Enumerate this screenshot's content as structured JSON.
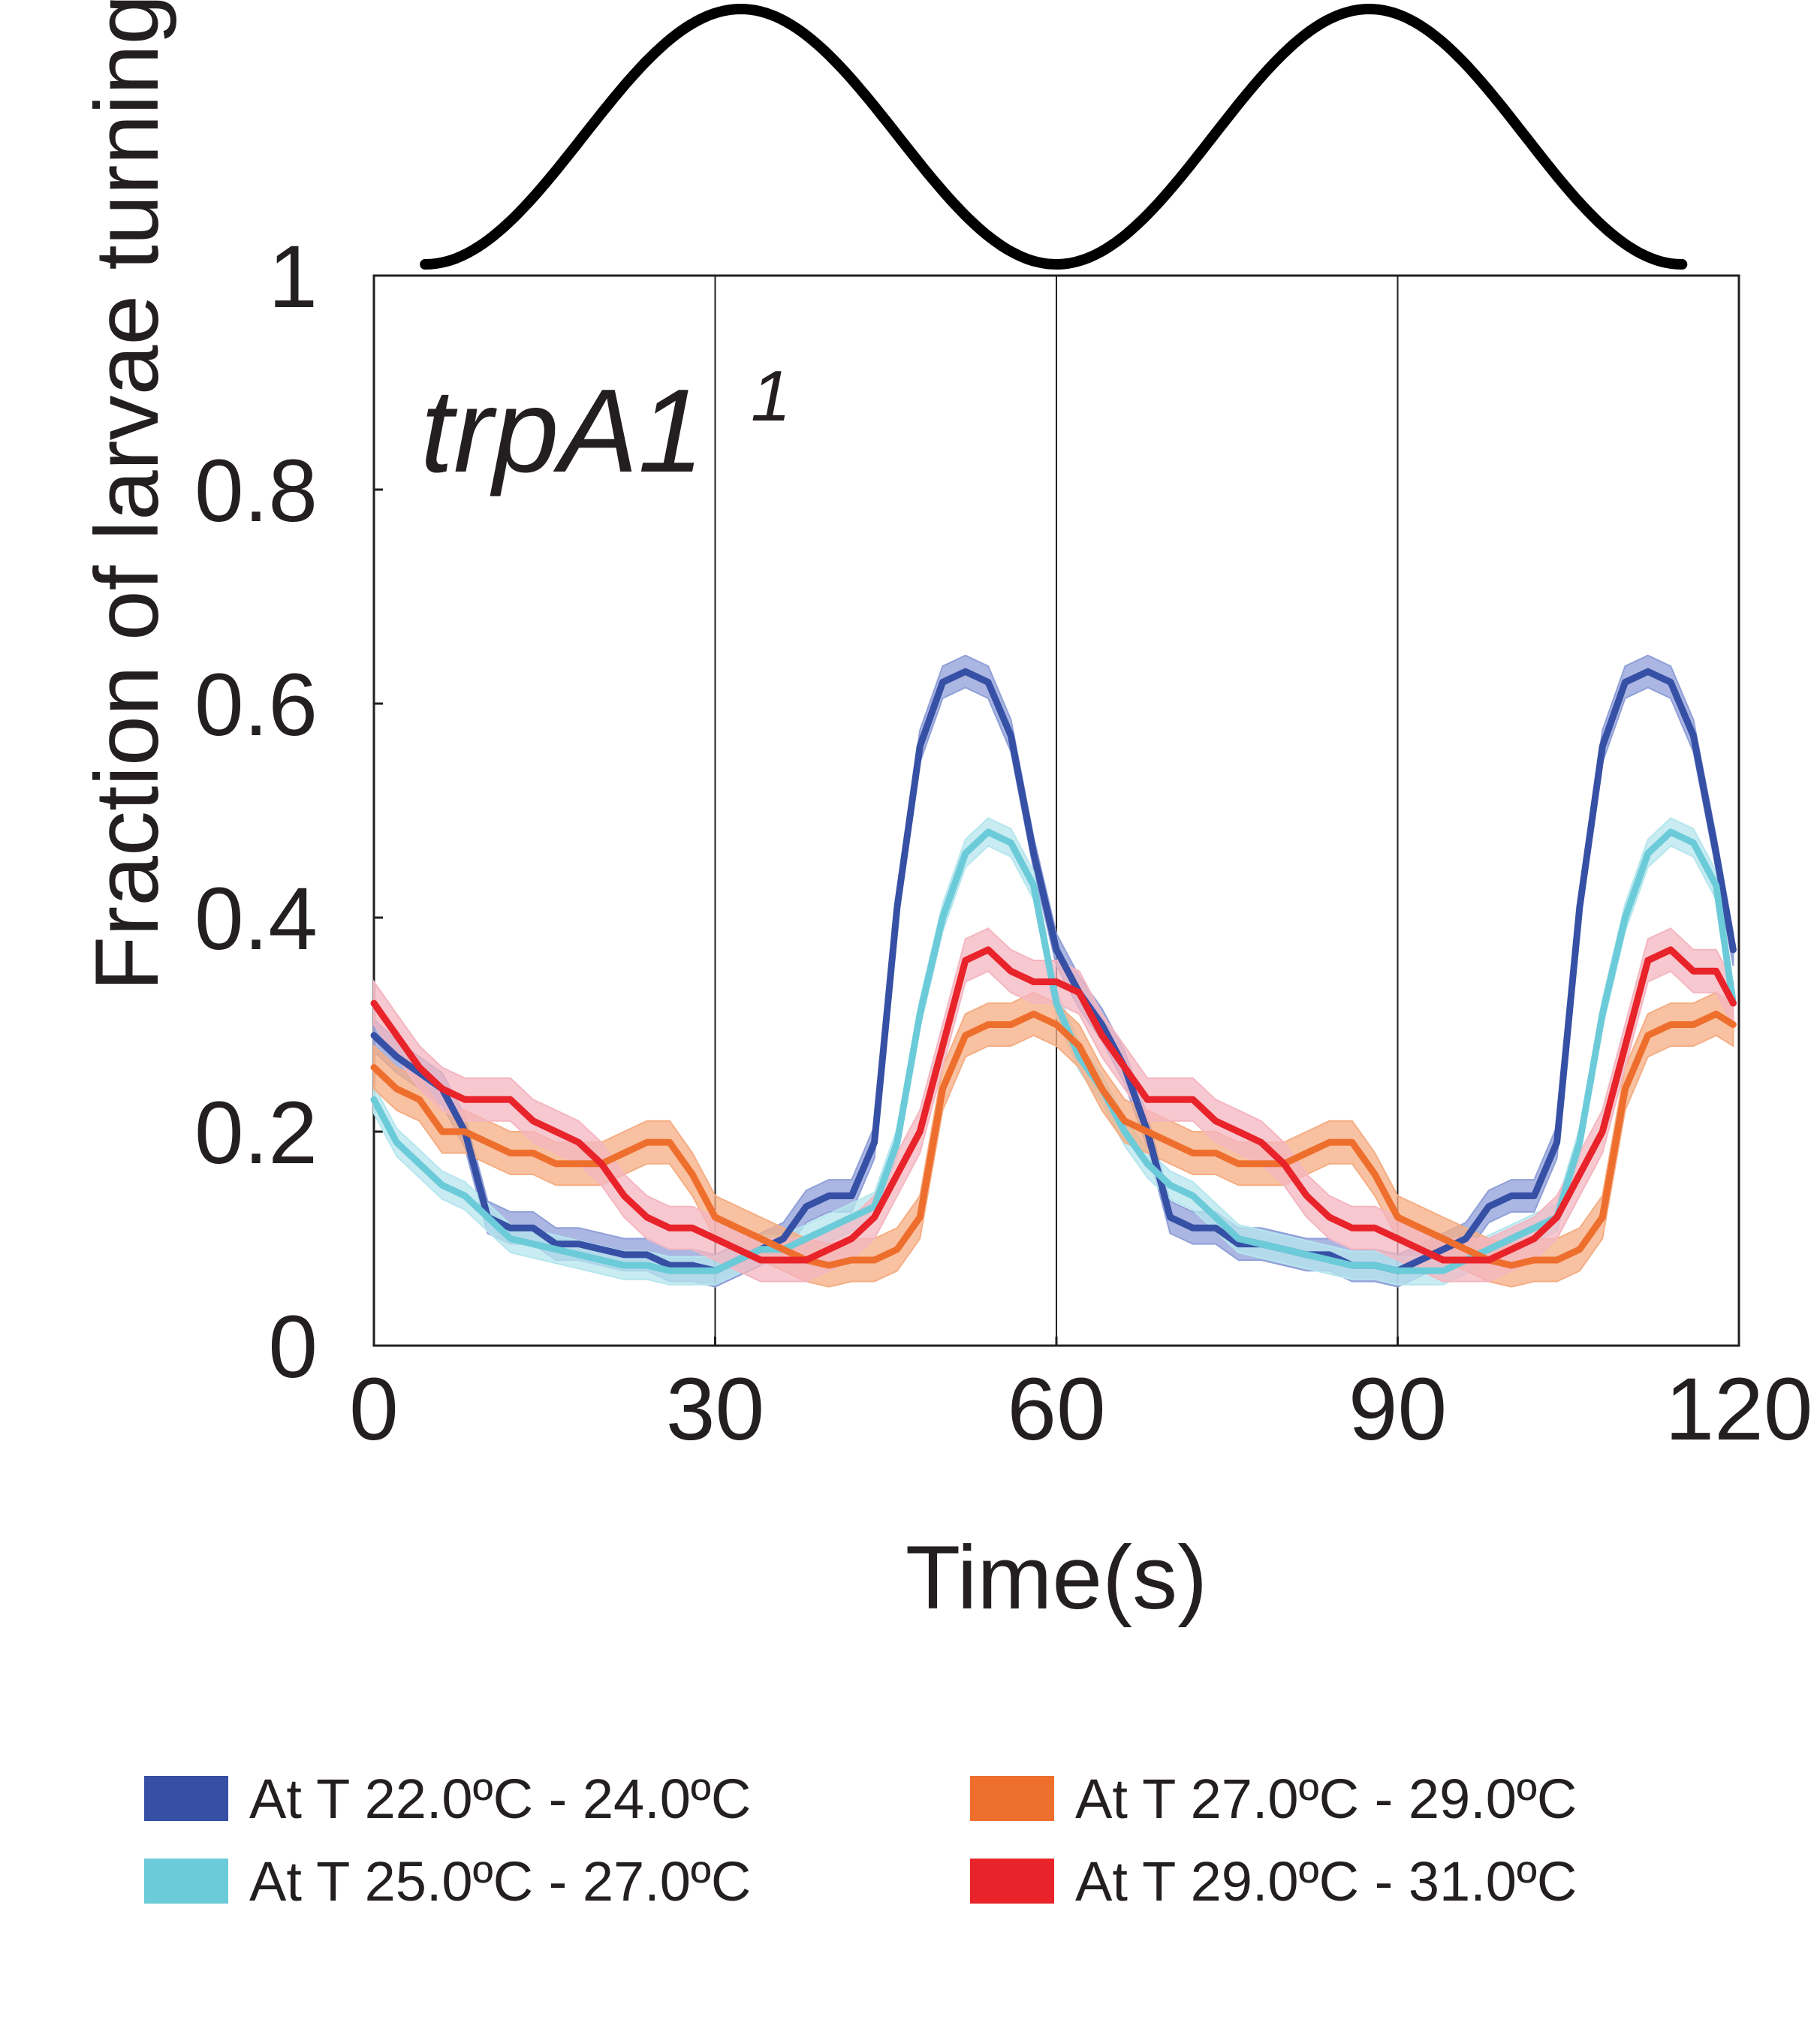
{
  "chart_data": {
    "type": "line",
    "panel_label": "trpA1",
    "panel_label_superscript": "1",
    "xlabel": "Time(s)",
    "ylabel": "Fraction of larvae turning",
    "xlim": [
      0,
      120
    ],
    "ylim": [
      0,
      1
    ],
    "x_ticks": [
      "0",
      "30",
      "60",
      "90",
      "120"
    ],
    "y_ticks": [
      "0",
      "0.2",
      "0.4",
      "0.6",
      "0.8",
      "1"
    ],
    "vertical_gridlines_at": [
      30,
      60,
      90
    ],
    "legend_position": "bottom, two columns",
    "stimulus_trace": {
      "description": "temperature waveform drawn above the axes",
      "x_start": 4.5,
      "x_end": 115,
      "minima_at": [
        4.5,
        60,
        115
      ],
      "maxima_at": [
        32.5,
        88
      ]
    },
    "series": [
      {
        "name": "At T 22.0ºC - 24.0ºC",
        "color": "#3650a5",
        "band_color": "#8f9fd8",
        "x": [
          0,
          2,
          4,
          6,
          8,
          9,
          10,
          12,
          14,
          16,
          18,
          20,
          22,
          24,
          26,
          28,
          30,
          32,
          34,
          36,
          38,
          40,
          42,
          44,
          46,
          48,
          50,
          52,
          54,
          56,
          58,
          60,
          62,
          64,
          66,
          68,
          69,
          70,
          72,
          74,
          76,
          78,
          80,
          82,
          84,
          86,
          88,
          90,
          92,
          94,
          96,
          98,
          100,
          102,
          104,
          106,
          108,
          110,
          112,
          114,
          116,
          118,
          119.5
        ],
        "y": [
          0.29,
          0.27,
          0.255,
          0.24,
          0.2,
          0.16,
          0.12,
          0.11,
          0.11,
          0.095,
          0.095,
          0.09,
          0.085,
          0.085,
          0.075,
          0.075,
          0.07,
          0.08,
          0.09,
          0.1,
          0.13,
          0.14,
          0.14,
          0.19,
          0.41,
          0.56,
          0.62,
          0.63,
          0.62,
          0.57,
          0.46,
          0.37,
          0.33,
          0.3,
          0.26,
          0.2,
          0.16,
          0.12,
          0.11,
          0.11,
          0.095,
          0.095,
          0.09,
          0.085,
          0.085,
          0.075,
          0.075,
          0.07,
          0.08,
          0.09,
          0.1,
          0.13,
          0.14,
          0.14,
          0.19,
          0.41,
          0.56,
          0.62,
          0.63,
          0.62,
          0.57,
          0.46,
          0.37
        ],
        "band_halfwidth": 0.015
      },
      {
        "name": "At T 25.0ºC - 27.0ºC",
        "color": "#6ccbd9",
        "band_color": "#b5e6ee",
        "x": [
          0,
          2,
          4,
          6,
          8,
          10,
          12,
          14,
          16,
          18,
          20,
          22,
          24,
          26,
          28,
          30,
          32,
          34,
          36,
          38,
          40,
          42,
          44,
          46,
          48,
          50,
          52,
          54,
          56,
          58,
          60,
          62,
          64,
          66,
          68,
          70,
          72,
          74,
          76,
          78,
          80,
          82,
          84,
          86,
          88,
          90,
          92,
          94,
          96,
          98,
          100,
          102,
          104,
          106,
          108,
          110,
          112,
          114,
          116,
          118,
          119.5
        ],
        "y": [
          0.23,
          0.19,
          0.17,
          0.15,
          0.14,
          0.12,
          0.1,
          0.095,
          0.09,
          0.085,
          0.08,
          0.075,
          0.075,
          0.07,
          0.07,
          0.07,
          0.08,
          0.09,
          0.09,
          0.1,
          0.11,
          0.12,
          0.13,
          0.19,
          0.31,
          0.4,
          0.46,
          0.48,
          0.47,
          0.43,
          0.32,
          0.27,
          0.24,
          0.2,
          0.17,
          0.15,
          0.14,
          0.12,
          0.1,
          0.095,
          0.09,
          0.085,
          0.08,
          0.075,
          0.075,
          0.07,
          0.07,
          0.07,
          0.08,
          0.09,
          0.1,
          0.11,
          0.12,
          0.19,
          0.31,
          0.4,
          0.46,
          0.48,
          0.47,
          0.43,
          0.32
        ],
        "band_halfwidth": 0.013
      },
      {
        "name": "At T 27.0ºC - 29.0ºC",
        "color": "#ee6f2d",
        "band_color": "#f5ad83",
        "x": [
          0,
          2,
          4,
          6,
          8,
          10,
          12,
          14,
          16,
          18,
          20,
          22,
          24,
          26,
          28,
          30,
          32,
          34,
          36,
          38,
          40,
          42,
          44,
          46,
          48,
          50,
          52,
          54,
          56,
          58,
          60,
          62,
          64,
          66,
          68,
          70,
          72,
          74,
          76,
          78,
          80,
          82,
          84,
          86,
          88,
          90,
          92,
          94,
          96,
          98,
          100,
          102,
          104,
          106,
          108,
          110,
          112,
          114,
          116,
          118,
          119.5
        ],
        "y": [
          0.26,
          0.24,
          0.23,
          0.2,
          0.2,
          0.19,
          0.18,
          0.18,
          0.17,
          0.17,
          0.17,
          0.18,
          0.19,
          0.19,
          0.16,
          0.12,
          0.11,
          0.1,
          0.09,
          0.08,
          0.075,
          0.08,
          0.08,
          0.09,
          0.12,
          0.24,
          0.29,
          0.3,
          0.3,
          0.31,
          0.3,
          0.28,
          0.24,
          0.21,
          0.2,
          0.19,
          0.18,
          0.18,
          0.17,
          0.17,
          0.17,
          0.18,
          0.19,
          0.19,
          0.16,
          0.12,
          0.11,
          0.1,
          0.09,
          0.08,
          0.075,
          0.08,
          0.08,
          0.09,
          0.12,
          0.24,
          0.29,
          0.3,
          0.3,
          0.31,
          0.3
        ],
        "band_halfwidth": 0.02
      },
      {
        "name": "At T 29.0ºC - 31.0ºC",
        "color": "#e8232a",
        "band_color": "#f4b6c0",
        "x": [
          0,
          2,
          4,
          6,
          8,
          10,
          12,
          14,
          16,
          18,
          20,
          22,
          24,
          26,
          28,
          30,
          32,
          34,
          36,
          38,
          40,
          42,
          44,
          46,
          48,
          50,
          52,
          54,
          56,
          58,
          60,
          62,
          64,
          66,
          68,
          70,
          72,
          74,
          76,
          78,
          80,
          82,
          84,
          86,
          88,
          90,
          92,
          94,
          96,
          98,
          100,
          102,
          104,
          106,
          108,
          110,
          112,
          114,
          116,
          118,
          119.5
        ],
        "y": [
          0.32,
          0.29,
          0.26,
          0.24,
          0.23,
          0.23,
          0.23,
          0.21,
          0.2,
          0.19,
          0.17,
          0.14,
          0.12,
          0.11,
          0.11,
          0.1,
          0.09,
          0.08,
          0.08,
          0.08,
          0.09,
          0.1,
          0.12,
          0.16,
          0.2,
          0.28,
          0.36,
          0.37,
          0.35,
          0.34,
          0.34,
          0.33,
          0.29,
          0.26,
          0.23,
          0.23,
          0.23,
          0.21,
          0.2,
          0.19,
          0.17,
          0.14,
          0.12,
          0.11,
          0.11,
          0.1,
          0.09,
          0.08,
          0.08,
          0.08,
          0.09,
          0.1,
          0.12,
          0.16,
          0.2,
          0.28,
          0.36,
          0.37,
          0.35,
          0.35,
          0.32
        ],
        "band_halfwidth": 0.02
      }
    ]
  }
}
